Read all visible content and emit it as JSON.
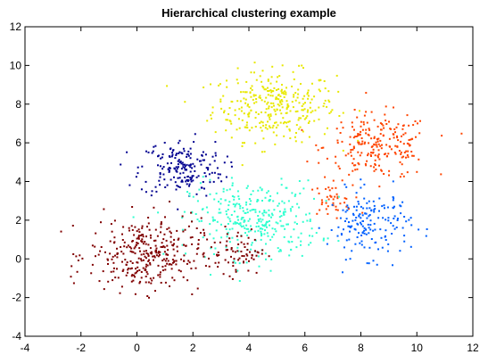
{
  "chart_data": {
    "type": "scatter",
    "title": "Hierarchical clustering example",
    "xlabel": "",
    "ylabel": "",
    "xlim": [
      -4,
      12
    ],
    "ylim": [
      -4,
      12
    ],
    "x_ticks": [
      -4,
      -2,
      0,
      2,
      4,
      6,
      8,
      10,
      12
    ],
    "y_ticks": [
      -4,
      -2,
      0,
      2,
      4,
      6,
      8,
      10,
      12
    ],
    "grid": false,
    "legend": "none",
    "clusters": [
      {
        "color": "#e8e800",
        "center": [
          4.9,
          7.9
        ],
        "spread": [
          1.1,
          0.9
        ],
        "count": 320
      },
      {
        "color": "#ff4500",
        "center": [
          8.6,
          5.8
        ],
        "spread": [
          0.95,
          0.85
        ],
        "count": 230
      },
      {
        "color": "#ff4500",
        "center": [
          6.9,
          3.0
        ],
        "spread": [
          0.4,
          0.4
        ],
        "count": 40
      },
      {
        "color": "#000090",
        "center": [
          1.6,
          4.7
        ],
        "spread": [
          0.75,
          0.75
        ],
        "count": 190
      },
      {
        "color": "#30ffd0",
        "center": [
          4.2,
          2.0
        ],
        "spread": [
          1.15,
          1.0
        ],
        "count": 320
      },
      {
        "color": "#0060ff",
        "center": [
          8.3,
          1.8
        ],
        "spread": [
          0.75,
          0.85
        ],
        "count": 170
      },
      {
        "color": "#800000",
        "center": [
          0.3,
          0.2
        ],
        "spread": [
          1.0,
          0.95
        ],
        "count": 330
      },
      {
        "color": "#800000",
        "center": [
          3.6,
          0.4
        ],
        "spread": [
          0.5,
          0.6
        ],
        "count": 70
      }
    ]
  }
}
